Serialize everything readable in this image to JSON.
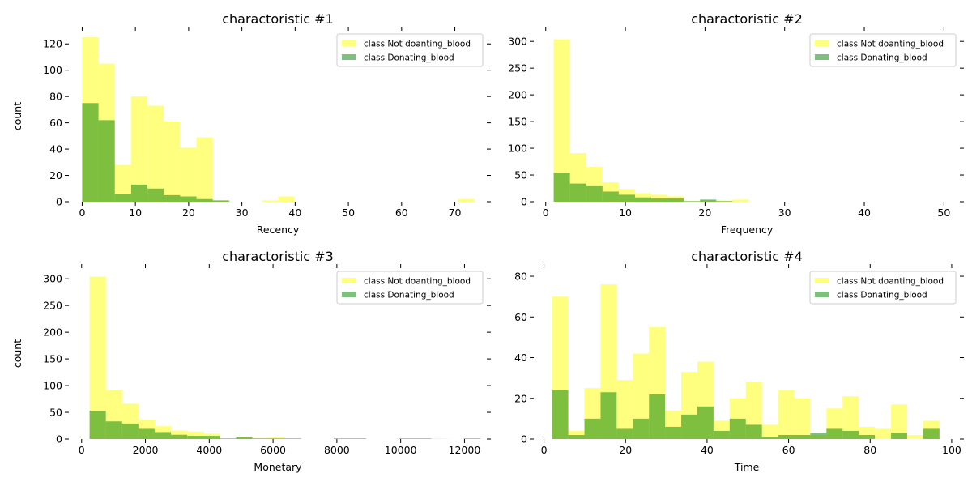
{
  "colors": {
    "not_donating": "#ffff00",
    "donating": "#008000",
    "bar_alpha": 0.5
  },
  "chart_data": [
    {
      "type": "bar",
      "title": "charactoristic #1",
      "xlabel": "Recency",
      "ylabel": "count",
      "xlim": [
        -2.5,
        76
      ],
      "ylim": [
        0,
        130
      ],
      "xticks": [
        0,
        10,
        20,
        30,
        40,
        50,
        60,
        70
      ],
      "yticks": [
        0,
        20,
        40,
        60,
        80,
        100,
        120
      ],
      "grid": false,
      "legend_position": "top-right",
      "bin_edges": [
        0,
        3.07,
        6.13,
        9.2,
        12.27,
        15.33,
        18.4,
        21.47,
        24.53,
        27.6,
        30.67,
        33.73,
        36.8,
        39.87,
        42.93,
        46,
        49.07,
        52.13,
        55.2,
        58.27,
        61.33,
        64.4,
        67.47,
        70.53,
        73.6
      ],
      "series": [
        {
          "name": "class Not doanting_blood",
          "values": [
            125,
            105,
            28,
            80,
            73,
            61,
            41,
            49,
            1,
            0,
            0,
            1,
            4,
            0,
            0,
            0,
            0,
            0,
            0,
            0,
            0,
            0,
            0,
            2
          ]
        },
        {
          "name": "class Donating_blood",
          "values": [
            75,
            62,
            6,
            13,
            10,
            5,
            4,
            2,
            1,
            0,
            0,
            0,
            0,
            0,
            0,
            0,
            0,
            0,
            0,
            0,
            0,
            0,
            0,
            0
          ]
        }
      ]
    },
    {
      "type": "bar",
      "title": "charactoristic #2",
      "xlabel": "Frequency",
      "ylabel": "",
      "xlim": [
        -1.5,
        52
      ],
      "ylim": [
        0,
        320
      ],
      "xticks": [
        0,
        10,
        20,
        30,
        40,
        50
      ],
      "yticks": [
        0,
        50,
        100,
        150,
        200,
        250,
        300
      ],
      "grid": false,
      "legend_position": "top-right",
      "bin_edges": [
        1,
        3.04,
        5.08,
        7.13,
        9.17,
        11.21,
        13.25,
        15.29,
        17.33,
        19.38,
        21.42,
        23.46,
        25.5
      ],
      "series": [
        {
          "name": "class Not doanting_blood",
          "values": [
            304,
            91,
            65,
            36,
            24,
            16,
            13,
            10,
            1,
            3,
            2,
            4
          ]
        },
        {
          "name": "class Donating_blood",
          "values": [
            54,
            34,
            29,
            19,
            13,
            8,
            6,
            6,
            1,
            4,
            1,
            0
          ]
        }
      ]
    },
    {
      "type": "bar",
      "title": "charactoristic #3",
      "xlabel": "Monetary",
      "ylabel": "count",
      "xlim": [
        -400,
        12700
      ],
      "ylim": [
        0,
        320
      ],
      "xticks": [
        0,
        2000,
        4000,
        6000,
        8000,
        10000,
        12000
      ],
      "yticks": [
        0,
        50,
        100,
        150,
        200,
        250,
        300
      ],
      "grid": false,
      "legend_position": "top-right",
      "bin_edges": [
        250,
        760,
        1270,
        1780,
        2290,
        2800,
        3310,
        3820,
        4330,
        4840,
        5350,
        5860,
        6370,
        6880,
        7390,
        7900,
        8410,
        8920,
        9430,
        9940,
        10450,
        10960,
        11470,
        11980,
        12490
      ],
      "series": [
        {
          "name": "class Not doanting_blood",
          "values": [
            304,
            91,
            66,
            36,
            24,
            16,
            14,
            10,
            1,
            3,
            2,
            3,
            1,
            0,
            0,
            1,
            1,
            0,
            0,
            1,
            1,
            1,
            0,
            1
          ]
        },
        {
          "name": "class Donating_blood",
          "values": [
            53,
            33,
            29,
            19,
            13,
            8,
            6,
            6,
            1,
            4,
            1,
            1,
            1,
            0,
            0,
            1,
            1,
            0,
            0,
            1,
            1,
            0,
            0,
            1
          ]
        }
      ]
    },
    {
      "type": "bar",
      "title": "charactoristic #4",
      "xlabel": "Time",
      "ylabel": "",
      "xlim": [
        -2.5,
        102
      ],
      "ylim": [
        0,
        84
      ],
      "xticks": [
        0,
        20,
        40,
        60,
        80,
        100
      ],
      "yticks": [
        0,
        20,
        40,
        60,
        80
      ],
      "grid": false,
      "legend_position": "top-right",
      "bin_edges": [
        2,
        5.96,
        9.92,
        13.88,
        17.83,
        21.79,
        25.75,
        29.71,
        33.67,
        37.63,
        41.58,
        45.54,
        49.5,
        53.46,
        57.42,
        61.38,
        65.33,
        69.29,
        73.25,
        77.21,
        81.17,
        85.13,
        89.08,
        93.04,
        97
      ],
      "series": [
        {
          "name": "class Not doanting_blood",
          "values": [
            70,
            4,
            25,
            76,
            29,
            42,
            55,
            14,
            33,
            38,
            9,
            20,
            28,
            7,
            24,
            20,
            2,
            15,
            21,
            6,
            5,
            17,
            2,
            9
          ]
        },
        {
          "name": "class Donating_blood",
          "values": [
            24,
            2,
            10,
            23,
            5,
            10,
            22,
            6,
            12,
            16,
            4,
            10,
            7,
            1,
            2,
            2,
            3,
            5,
            4,
            2,
            0,
            3,
            0,
            5
          ]
        }
      ]
    }
  ]
}
